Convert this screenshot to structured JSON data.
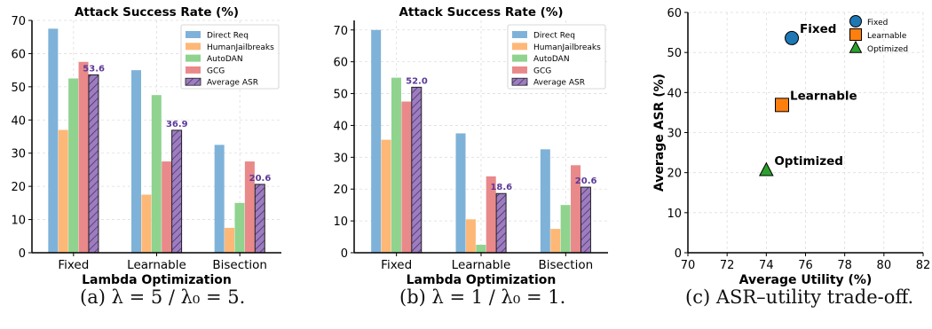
{
  "captions": [
    "(a) λ = 5 / λ₀ = 5.",
    "(b) λ = 1 / λ₀ = 1.",
    "(c) ASR–utility trade-off."
  ],
  "chart_data": [
    {
      "type": "bar",
      "title": "Attack Success Rate (%)",
      "xlabel": "Lambda Optimization",
      "ylabel": "",
      "ylim": [
        0,
        70
      ],
      "yticks": [
        "0",
        "10",
        "20",
        "30",
        "40",
        "50",
        "60",
        "70"
      ],
      "categories": [
        "Fixed",
        "Learnable",
        "Bisection"
      ],
      "legend_position": "top-right",
      "grid": true,
      "series": [
        {
          "name": "Direct Req",
          "color": "#7fb2d8",
          "values": [
            67.5,
            55,
            32.5
          ]
        },
        {
          "name": "HumanJailbreaks",
          "color": "#fdb877",
          "values": [
            37,
            17.5,
            7.5
          ]
        },
        {
          "name": "AutoDAN",
          "color": "#8fd38f",
          "values": [
            52.5,
            47.5,
            15
          ]
        },
        {
          "name": "GCG",
          "color": "#e9898a",
          "values": [
            57.5,
            27.5,
            27.5
          ]
        },
        {
          "name": "Average ASR",
          "color": "#9d7cc0",
          "hatched": true,
          "values": [
            53.6,
            36.9,
            20.6
          ]
        }
      ],
      "data_labels": [
        "53.6",
        "36.9",
        "20.6"
      ]
    },
    {
      "type": "bar",
      "title": "Attack Success Rate (%)",
      "xlabel": "Lambda Optimization",
      "ylabel": "",
      "ylim": [
        0,
        73
      ],
      "yticks": [
        "0",
        "10",
        "20",
        "30",
        "40",
        "50",
        "60",
        "70"
      ],
      "categories": [
        "Fixed",
        "Learnable",
        "Bisection"
      ],
      "legend_position": "top-right",
      "grid": true,
      "series": [
        {
          "name": "Direct Req",
          "color": "#7fb2d8",
          "values": [
            70,
            37.5,
            32.5
          ]
        },
        {
          "name": "HumanJailbreaks",
          "color": "#fdb877",
          "values": [
            35.5,
            10.5,
            7.5
          ]
        },
        {
          "name": "AutoDAN",
          "color": "#8fd38f",
          "values": [
            55,
            2.5,
            15
          ]
        },
        {
          "name": "GCG",
          "color": "#e9898a",
          "values": [
            47.5,
            24,
            27.5
          ]
        },
        {
          "name": "Average ASR",
          "color": "#9d7cc0",
          "hatched": true,
          "values": [
            52.0,
            18.6,
            20.6
          ]
        }
      ],
      "data_labels": [
        "52.0",
        "18.6",
        "20.6"
      ]
    },
    {
      "type": "scatter",
      "title": "",
      "xlabel": "Average Utility (%)",
      "ylabel": "Average ASR (%)",
      "xlim": [
        70,
        82
      ],
      "ylim": [
        0,
        60
      ],
      "xticks": [
        "70",
        "72",
        "74",
        "76",
        "78",
        "80",
        "82"
      ],
      "yticks": [
        "0",
        "10",
        "20",
        "30",
        "40",
        "50",
        "60"
      ],
      "legend_position": "top-right",
      "grid": true,
      "series": [
        {
          "name": "Fixed",
          "marker": "circle",
          "color": "#1f77b4",
          "x": 75.3,
          "y": 53.6,
          "label": "Fixed"
        },
        {
          "name": "Learnable",
          "marker": "square",
          "color": "#ff7f0e",
          "x": 74.8,
          "y": 36.9,
          "label": "Learnable"
        },
        {
          "name": "Optimized",
          "marker": "triangle",
          "color": "#2ca02c",
          "x": 74.0,
          "y": 20.6,
          "label": "Optimized"
        }
      ]
    }
  ]
}
